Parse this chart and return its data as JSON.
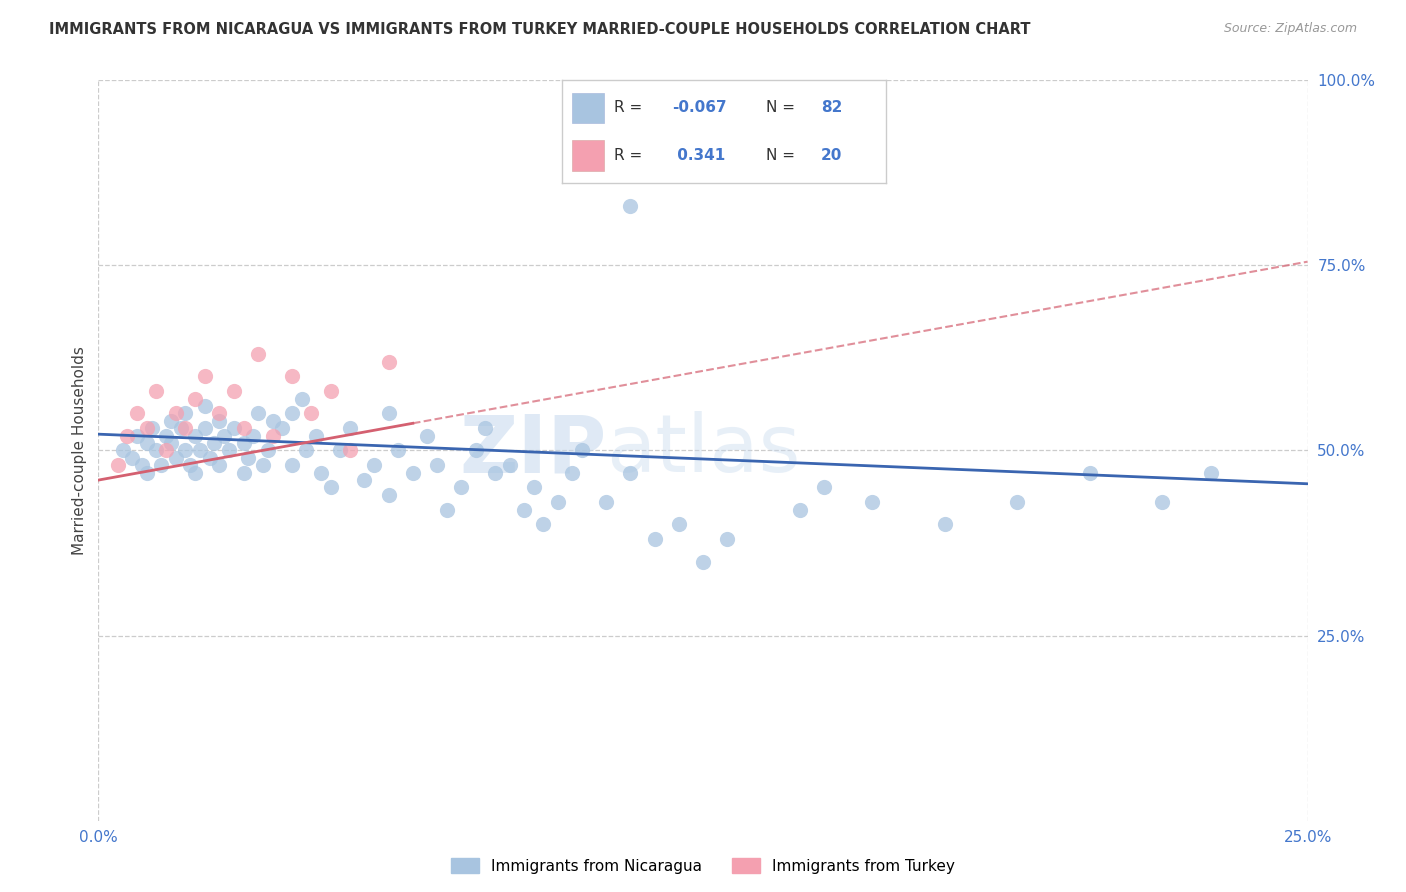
{
  "title": "IMMIGRANTS FROM NICARAGUA VS IMMIGRANTS FROM TURKEY MARRIED-COUPLE HOUSEHOLDS CORRELATION CHART",
  "source": "Source: ZipAtlas.com",
  "ylabel": "Married-couple Households",
  "xlim": [
    0,
    0.25
  ],
  "ylim": [
    0,
    1.0
  ],
  "xtick_labels": [
    "0.0%",
    "25.0%"
  ],
  "ytick_labels": [
    "25.0%",
    "50.0%",
    "75.0%",
    "100.0%"
  ],
  "ytick_values": [
    0.25,
    0.5,
    0.75,
    1.0
  ],
  "xtick_values": [
    0.0,
    0.25
  ],
  "color_nicaragua": "#a8c4e0",
  "color_turkey": "#f4a0b0",
  "color_line_nicaragua": "#3a65b0",
  "color_line_turkey": "#d46070",
  "watermark_zip": "ZIP",
  "watermark_atlas": "atlas",
  "background": "#ffffff",
  "grid_color": "#cccccc",
  "nicaragua_x": [
    0.005,
    0.007,
    0.008,
    0.009,
    0.01,
    0.01,
    0.011,
    0.012,
    0.013,
    0.014,
    0.015,
    0.015,
    0.016,
    0.017,
    0.018,
    0.018,
    0.019,
    0.02,
    0.02,
    0.021,
    0.022,
    0.022,
    0.023,
    0.024,
    0.025,
    0.025,
    0.026,
    0.027,
    0.028,
    0.03,
    0.03,
    0.031,
    0.032,
    0.033,
    0.034,
    0.035,
    0.036,
    0.038,
    0.04,
    0.04,
    0.042,
    0.043,
    0.045,
    0.046,
    0.048,
    0.05,
    0.052,
    0.055,
    0.057,
    0.06,
    0.06,
    0.062,
    0.065,
    0.068,
    0.07,
    0.072,
    0.075,
    0.078,
    0.08,
    0.082,
    0.085,
    0.088,
    0.09,
    0.092,
    0.095,
    0.098,
    0.1,
    0.105,
    0.11,
    0.115,
    0.12,
    0.125,
    0.13,
    0.145,
    0.15,
    0.16,
    0.175,
    0.19,
    0.205,
    0.22,
    0.11,
    0.23
  ],
  "nicaragua_y": [
    0.5,
    0.49,
    0.52,
    0.48,
    0.51,
    0.47,
    0.53,
    0.5,
    0.48,
    0.52,
    0.51,
    0.54,
    0.49,
    0.53,
    0.5,
    0.55,
    0.48,
    0.52,
    0.47,
    0.5,
    0.53,
    0.56,
    0.49,
    0.51,
    0.54,
    0.48,
    0.52,
    0.5,
    0.53,
    0.51,
    0.47,
    0.49,
    0.52,
    0.55,
    0.48,
    0.5,
    0.54,
    0.53,
    0.55,
    0.48,
    0.57,
    0.5,
    0.52,
    0.47,
    0.45,
    0.5,
    0.53,
    0.46,
    0.48,
    0.55,
    0.44,
    0.5,
    0.47,
    0.52,
    0.48,
    0.42,
    0.45,
    0.5,
    0.53,
    0.47,
    0.48,
    0.42,
    0.45,
    0.4,
    0.43,
    0.47,
    0.5,
    0.43,
    0.47,
    0.38,
    0.4,
    0.35,
    0.38,
    0.42,
    0.45,
    0.43,
    0.4,
    0.43,
    0.47,
    0.43,
    0.83,
    0.47
  ],
  "turkey_x": [
    0.004,
    0.006,
    0.008,
    0.01,
    0.012,
    0.014,
    0.016,
    0.018,
    0.02,
    0.022,
    0.025,
    0.028,
    0.03,
    0.033,
    0.036,
    0.04,
    0.044,
    0.048,
    0.052,
    0.06
  ],
  "turkey_y": [
    0.48,
    0.52,
    0.55,
    0.53,
    0.58,
    0.5,
    0.55,
    0.53,
    0.57,
    0.6,
    0.55,
    0.58,
    0.53,
    0.63,
    0.52,
    0.6,
    0.55,
    0.58,
    0.5,
    0.62
  ],
  "nic_trend_x0": 0.0,
  "nic_trend_y0": 0.522,
  "nic_trend_x1": 0.25,
  "nic_trend_y1": 0.455,
  "tur_trend_x0": 0.0,
  "tur_trend_y0": 0.46,
  "tur_trend_x1": 0.25,
  "tur_trend_y1": 0.755
}
